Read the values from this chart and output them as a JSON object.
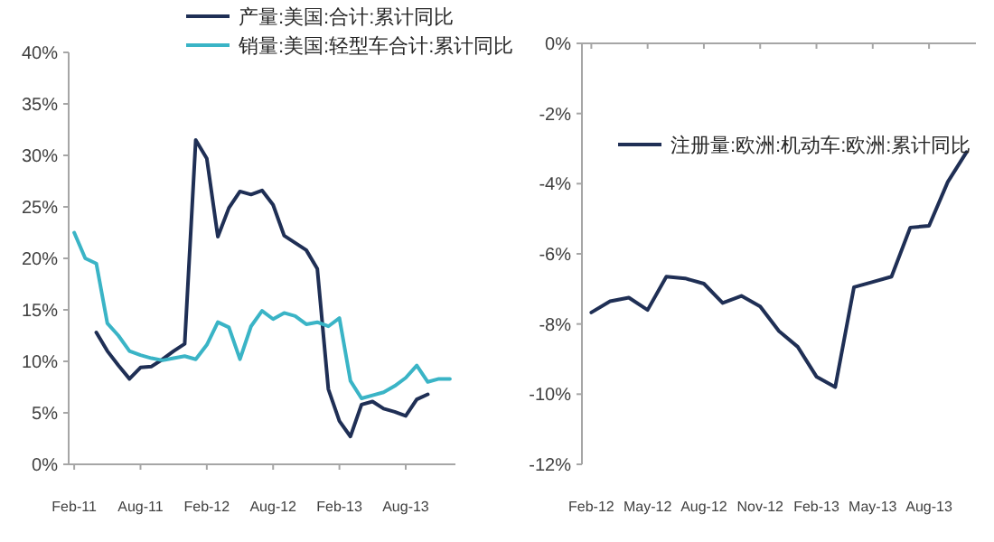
{
  "chart_data": [
    {
      "type": "line",
      "categories": [
        "Feb-11",
        null,
        null,
        null,
        null,
        null,
        "Aug-11",
        null,
        null,
        null,
        null,
        null,
        "Feb-12",
        null,
        null,
        null,
        null,
        null,
        "Aug-12",
        null,
        null,
        null,
        null,
        null,
        "Feb-13",
        null,
        null,
        null,
        null,
        null,
        "Aug-13",
        null,
        null,
        null,
        null
      ],
      "series": [
        {
          "name": "产量:美国:合计:累计同比",
          "color": "#1f2f55",
          "values": [
            null,
            null,
            12.8,
            11.0,
            9.6,
            8.3,
            9.4,
            9.5,
            10.2,
            11.0,
            11.7,
            31.5,
            29.7,
            22.1,
            24.9,
            26.5,
            26.2,
            26.6,
            25.2,
            22.2,
            21.5,
            20.8,
            19.0,
            7.3,
            4.2,
            2.7,
            5.8,
            6.1,
            5.4,
            5.1,
            4.7,
            6.3,
            6.8,
            null,
            null
          ]
        },
        {
          "name": "销量:美国:轻型车合计:累计同比",
          "color": "#3ab4c6",
          "values": [
            22.5,
            20.0,
            19.5,
            13.7,
            12.5,
            11.0,
            10.6,
            10.3,
            10.1,
            10.3,
            10.5,
            10.2,
            11.6,
            13.8,
            13.3,
            10.2,
            13.4,
            14.9,
            14.1,
            14.7,
            14.4,
            13.6,
            13.8,
            13.4,
            14.2,
            8.1,
            6.4,
            6.7,
            7.0,
            7.6,
            8.4,
            9.6,
            8.0,
            8.3,
            8.3
          ]
        }
      ],
      "ylim": [
        0,
        40
      ],
      "yticks": [
        {
          "value": 0,
          "label": "0%"
        },
        {
          "value": 5,
          "label": "5%"
        },
        {
          "value": 10,
          "label": "10%"
        },
        {
          "value": 15,
          "label": "15%"
        },
        {
          "value": 20,
          "label": "20%"
        },
        {
          "value": 25,
          "label": "25%"
        },
        {
          "value": 30,
          "label": "30%"
        },
        {
          "value": 35,
          "label": "35%"
        },
        {
          "value": 40,
          "label": "40%"
        }
      ],
      "grid": false,
      "legend": "top",
      "marker": "none",
      "line_style": "solid"
    },
    {
      "type": "line",
      "categories": [
        "Feb-12",
        null,
        null,
        "May-12",
        null,
        null,
        "Aug-12",
        null,
        null,
        "Nov-12",
        null,
        null,
        "Feb-13",
        null,
        null,
        "May-13",
        null,
        null,
        "Aug-13",
        null,
        null
      ],
      "series": [
        {
          "name": "注册量:欧洲:机动车:欧洲:累计同比",
          "color": "#1f2f55",
          "values": [
            -7.67,
            -7.35,
            -7.25,
            -7.6,
            -6.65,
            -6.7,
            -6.85,
            -7.4,
            -7.2,
            -7.5,
            -8.2,
            -8.65,
            -9.5,
            -9.8,
            -6.95,
            -6.8,
            -6.65,
            -5.25,
            -5.2,
            -3.95,
            -3.1
          ]
        }
      ],
      "ylim": [
        -12,
        0
      ],
      "yticks": [
        {
          "value": -12,
          "label": "-12%"
        },
        {
          "value": -10,
          "label": "-10%"
        },
        {
          "value": -8,
          "label": "-8%"
        },
        {
          "value": -6,
          "label": "-6%"
        },
        {
          "value": -4,
          "label": "-4%"
        },
        {
          "value": -2,
          "label": "-2%"
        },
        {
          "value": 0,
          "label": "0%"
        }
      ],
      "grid": false,
      "legend": "top right",
      "marker": "none",
      "line_style": "solid"
    }
  ]
}
